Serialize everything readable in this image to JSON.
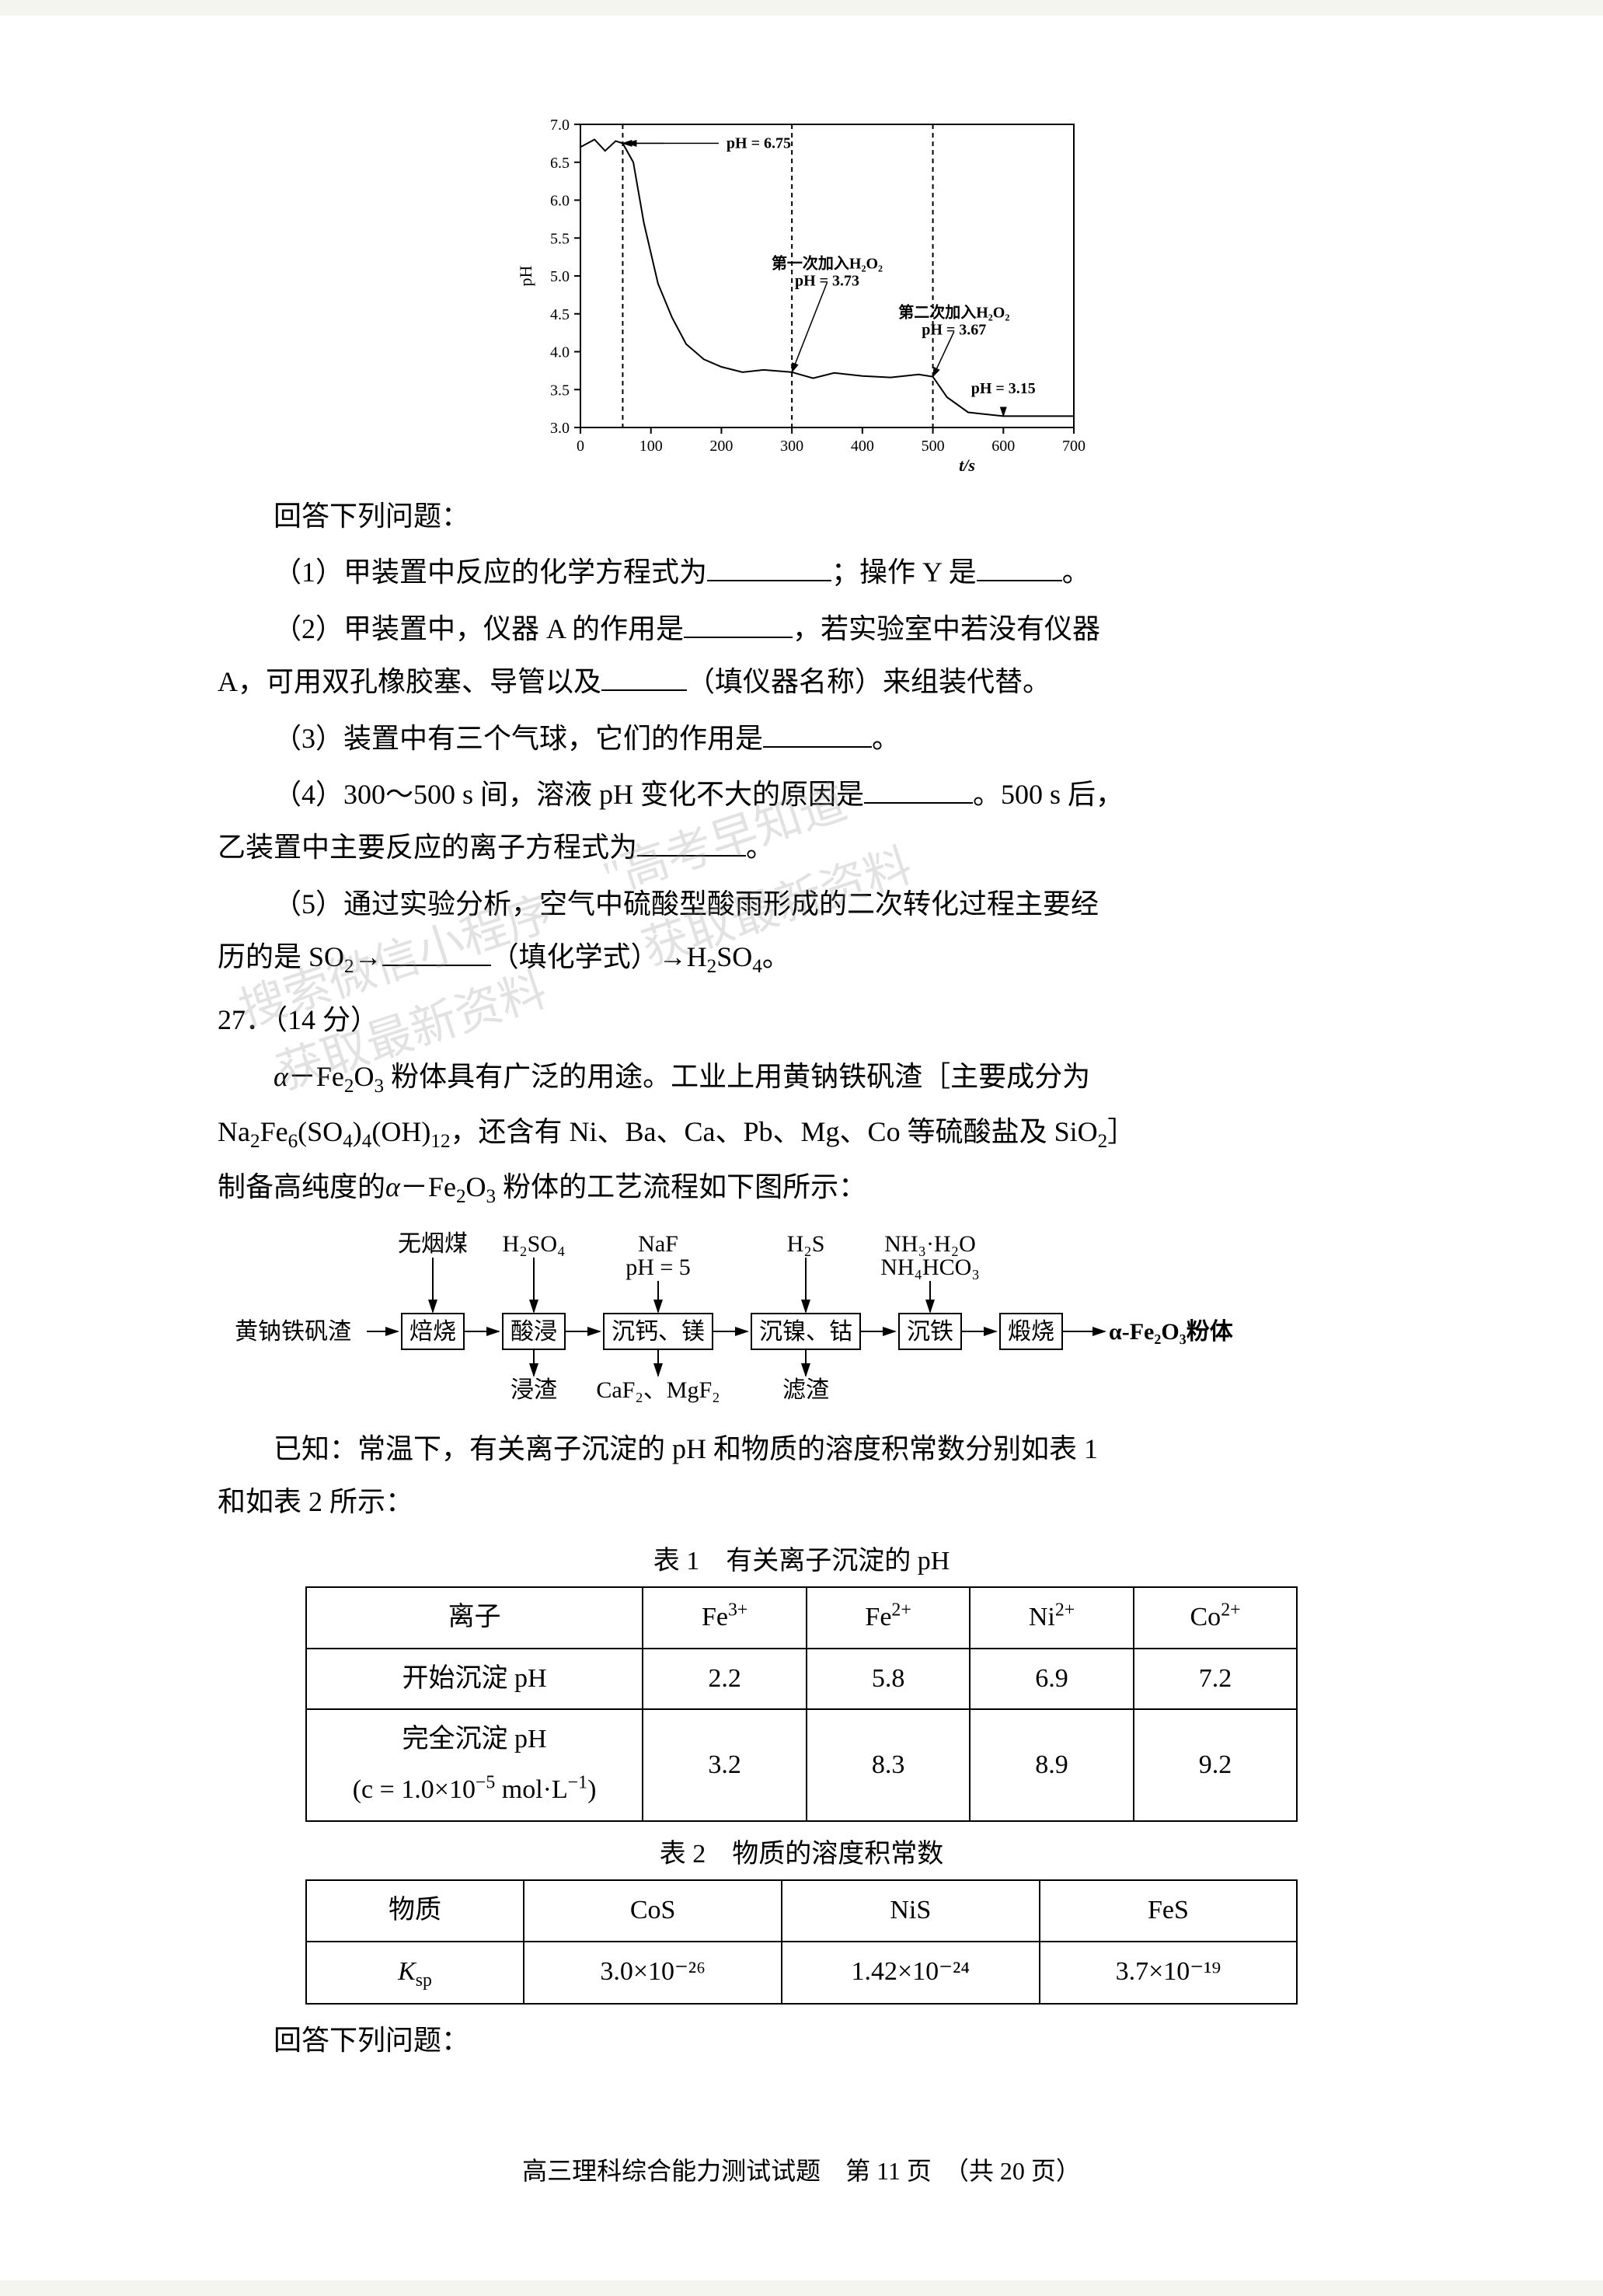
{
  "chart": {
    "type": "line",
    "xlabel": "t/s",
    "ylabel": "pH",
    "xlim": [
      0,
      700
    ],
    "ylim": [
      3.0,
      7.0
    ],
    "xtick_step": 100,
    "ytick_step": 0.5,
    "axis_color": "#000000",
    "background_color": "#ffffff",
    "line_color": "#000000",
    "line_width": 2,
    "label_fontsize": 22,
    "tick_fontsize": 20,
    "annotation_fontsize": 20,
    "data_points": [
      {
        "t": 0,
        "pH": 6.7
      },
      {
        "t": 20,
        "pH": 6.8
      },
      {
        "t": 35,
        "pH": 6.65
      },
      {
        "t": 50,
        "pH": 6.78
      },
      {
        "t": 60,
        "pH": 6.75
      },
      {
        "t": 75,
        "pH": 6.5
      },
      {
        "t": 90,
        "pH": 5.7
      },
      {
        "t": 110,
        "pH": 4.9
      },
      {
        "t": 130,
        "pH": 4.45
      },
      {
        "t": 150,
        "pH": 4.1
      },
      {
        "t": 175,
        "pH": 3.9
      },
      {
        "t": 200,
        "pH": 3.8
      },
      {
        "t": 230,
        "pH": 3.73
      },
      {
        "t": 260,
        "pH": 3.76
      },
      {
        "t": 300,
        "pH": 3.73
      },
      {
        "t": 330,
        "pH": 3.65
      },
      {
        "t": 360,
        "pH": 3.72
      },
      {
        "t": 400,
        "pH": 3.68
      },
      {
        "t": 440,
        "pH": 3.66
      },
      {
        "t": 480,
        "pH": 3.7
      },
      {
        "t": 500,
        "pH": 3.67
      },
      {
        "t": 520,
        "pH": 3.4
      },
      {
        "t": 550,
        "pH": 3.2
      },
      {
        "t": 600,
        "pH": 3.15
      },
      {
        "t": 650,
        "pH": 3.15
      },
      {
        "t": 700,
        "pH": 3.15
      }
    ],
    "dashed_lines": [
      {
        "x": 60,
        "label": null
      },
      {
        "x": 300,
        "label": null
      },
      {
        "x": 500,
        "label": null
      }
    ],
    "annotations": [
      {
        "text": "pH = 6.75",
        "x": 130,
        "pH": 6.75,
        "arrow_to": {
          "t": 60,
          "pH": 6.75
        },
        "arrow_dir": "right"
      },
      {
        "text": "第一次加入H₂O₂",
        "x": 350,
        "pH": 5.1,
        "line2": "pH = 3.73",
        "arrow_to": {
          "t": 300,
          "pH": 3.73
        }
      },
      {
        "text": "第二次加入H₂O₂",
        "x": 530,
        "pH": 4.45,
        "line2": "pH = 3.67",
        "arrow_to": {
          "t": 500,
          "pH": 3.67
        }
      },
      {
        "text": "pH = 3.15",
        "x": 600,
        "pH": 3.45,
        "arrow_to": {
          "t": 600,
          "pH": 3.15
        }
      }
    ]
  },
  "questions": {
    "intro": "回答下列问题：",
    "q1": "（1）甲装置中反应的化学方程式为＿＿＿＿；操作 Y 是＿＿＿＿。",
    "q2_a": "（2）甲装置中，仪器 A 的作用是＿＿＿＿，若实验室中若没有仪器",
    "q2_b": "A，可用双孔橡胶塞、导管以及＿＿＿＿（填仪器名称）来组装代替。",
    "q3": "（3）装置中有三个气球，它们的作用是＿＿＿＿。",
    "q4_a": "（4）300～500 s 间，溶液 pH 变化不大的原因是＿＿＿＿。500 s 后，",
    "q4_b": "乙装置中主要反应的离子方程式为＿＿＿＿。",
    "q5_a": "（5）通过实验分析，空气中硫酸型酸雨形成的二次转化过程主要经",
    "q5_b": "历的是 SO₂→＿＿＿＿（填化学式）→H₂SO₄。"
  },
  "q27": {
    "number": "27．（14 分）",
    "p1_a": "α－Fe₂O₃ 粉体具有广泛的用途。工业上用黄钠铁矾渣［主要成分为",
    "p1_b": "Na₂Fe₆(SO₄)₄(OH)₁₂，还含有 Ni、Ba、Ca、Pb、Mg、Co 等硫酸盐及 SiO₂］",
    "p1_c": "制备高纯度的α－Fe₂O₃ 粉体的工艺流程如下图所示：",
    "p2_a": "已知：常温下，有关离子沉淀的 pH 和物质的溶度积常数分别如表 1",
    "p2_b": "和如表 2 所示：",
    "answer_intro": "回答下列问题："
  },
  "flowchart": {
    "type": "flowchart",
    "background_color": "#ffffff",
    "box_border_color": "#000000",
    "box_fill_color": "#ffffff",
    "text_color": "#000000",
    "font_size": 30,
    "input_left": "黄钠铁矾渣",
    "nodes": [
      {
        "id": "n1",
        "label": "焙烧",
        "top_input": "无烟煤"
      },
      {
        "id": "n2",
        "label": "酸浸",
        "top_input": "H₂SO₄",
        "bottom_output": "浸渣"
      },
      {
        "id": "n3",
        "label": "沉钙、镁",
        "top_input": "NaF",
        "top_input2": "pH = 5",
        "bottom_output": "CaF₂、MgF₂"
      },
      {
        "id": "n4",
        "label": "沉镍、钴",
        "top_input": "H₂S",
        "bottom_output": "滤渣"
      },
      {
        "id": "n5",
        "label": "沉铁",
        "top_input": "NH₃·H₂O",
        "top_input2": "NH₄HCO₃"
      },
      {
        "id": "n6",
        "label": "煅烧"
      }
    ],
    "output_right": "α-Fe₂O₃粉体"
  },
  "table1": {
    "caption": "表 1　有关离子沉淀的 pH",
    "columns": [
      "离子",
      "Fe³⁺",
      "Fe²⁺",
      "Ni²⁺",
      "Co²⁺"
    ],
    "rows": [
      [
        "开始沉淀 pH",
        "2.2",
        "5.8",
        "6.9",
        "7.2"
      ],
      [
        "完全沉淀 pH\n(c = 1.0×10⁻⁵ mol·L⁻¹)",
        "3.2",
        "8.3",
        "8.9",
        "9.2"
      ]
    ],
    "col_widths": [
      "34%",
      "16.5%",
      "16.5%",
      "16.5%",
      "16.5%"
    ],
    "border_color": "#000000",
    "font_size": 34
  },
  "table2": {
    "caption": "表 2　物质的溶度积常数",
    "columns": [
      "物质",
      "CoS",
      "NiS",
      "FeS"
    ],
    "rows": [
      [
        "Kₛₚ",
        "3.0×10⁻²⁶",
        "1.42×10⁻²⁴",
        "3.7×10⁻¹⁹"
      ]
    ],
    "col_widths": [
      "22%",
      "26%",
      "26%",
      "26%"
    ],
    "border_color": "#000000",
    "font_size": 34
  },
  "footer": {
    "text": "高三理科综合能力测试试题　第 11 页　（共 20 页）"
  },
  "watermarks": {
    "w1": "\"高考早知道\"",
    "w2": "获取最新资料",
    "w3": "搜索微信小程序",
    "w4": "获取最新资料"
  }
}
